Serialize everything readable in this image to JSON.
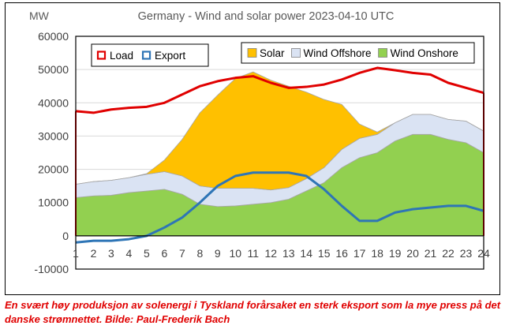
{
  "caption": "En svært høy produksjon av solenergi i Tyskland forårsaket en sterk eksport som la mye press på det danske strømnettet. Bilde: Paul-Frederik Bach",
  "chart_data": {
    "type": "area",
    "title": "Germany - Wind and solar power 2023-04-10 UTC",
    "ylabel": "MW",
    "xlabel": "",
    "ylim": [
      -10000,
      60000
    ],
    "yticks": [
      -10000,
      0,
      10000,
      20000,
      30000,
      40000,
      50000,
      60000
    ],
    "ytick_labels": [
      "-10000",
      "0",
      "10000",
      "20000",
      "30000",
      "40000",
      "50000",
      "60000"
    ],
    "x": [
      1,
      2,
      3,
      4,
      5,
      6,
      7,
      8,
      9,
      10,
      11,
      12,
      13,
      14,
      15,
      16,
      17,
      18,
      19,
      20,
      21,
      22,
      23,
      24
    ],
    "xtick_labels": [
      "1",
      "2",
      "3",
      "4",
      "5",
      "6",
      "7",
      "8",
      "9",
      "10",
      "11",
      "12",
      "13",
      "14",
      "15",
      "16",
      "17",
      "18",
      "19",
      "20",
      "21",
      "22",
      "23",
      "24"
    ],
    "grid": "horizontal",
    "stacked_areas": [
      {
        "name": "Wind Onshore",
        "color": "#92d050",
        "values": [
          11500,
          12000,
          12200,
          13000,
          13500,
          14000,
          12500,
          9500,
          8800,
          9000,
          9500,
          10000,
          11000,
          13500,
          16000,
          20500,
          23500,
          25000,
          28500,
          30500,
          30500,
          29000,
          28000,
          25000
        ]
      },
      {
        "name": "Wind Offshore",
        "color": "#dae3f3",
        "values": [
          4000,
          4300,
          4500,
          4500,
          5000,
          5300,
          5500,
          5500,
          5500,
          5300,
          4800,
          3800,
          3500,
          3700,
          4500,
          5500,
          5800,
          5500,
          5500,
          6000,
          6000,
          6000,
          6500,
          6500
        ]
      },
      {
        "name": "Solar",
        "color": "#ffc000",
        "values": [
          0,
          0,
          0,
          0,
          200,
          3500,
          11000,
          22000,
          28000,
          33000,
          35000,
          33000,
          30500,
          26000,
          20500,
          13500,
          4300,
          700,
          0,
          0,
          0,
          0,
          0,
          0
        ]
      }
    ],
    "lines": [
      {
        "name": "Load",
        "color": "#e00000",
        "values": [
          37500,
          37000,
          38000,
          38500,
          38800,
          40000,
          42500,
          45000,
          46500,
          47500,
          48000,
          46000,
          44500,
          44800,
          45500,
          47000,
          49000,
          50500,
          49800,
          49000,
          48500,
          46000,
          44500,
          43000
        ]
      },
      {
        "name": "Export",
        "color": "#2e75b6",
        "values": [
          -2000,
          -1500,
          -1500,
          -1000,
          0,
          2500,
          5500,
          10000,
          15000,
          18000,
          19000,
          19000,
          19000,
          18000,
          14000,
          9000,
          4500,
          4500,
          7000,
          8000,
          8500,
          9000,
          9000,
          7500
        ]
      }
    ],
    "legends": [
      {
        "placement": "top-left",
        "entries": [
          "Load",
          "Export"
        ]
      },
      {
        "placement": "top-right",
        "entries": [
          "Solar",
          "Wind Offshore",
          "Wind Onshore"
        ]
      }
    ]
  }
}
